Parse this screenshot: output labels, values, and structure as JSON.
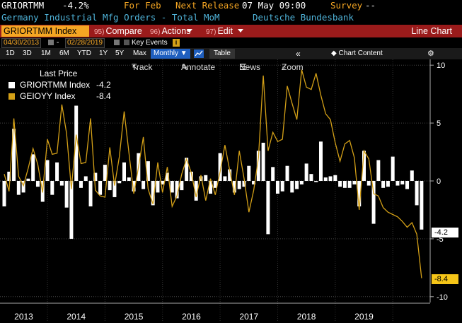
{
  "header": {
    "ticker": "GRIORTMM",
    "value": "-4.2%",
    "for_label": "For Feb",
    "next_release_label": "Next Release",
    "next_release_date": "07 May 09:00",
    "survey_label": "Survey",
    "survey_value": "--",
    "description": "Germany Industrial Mfg Orders - Total MoM",
    "source": "Deutsche Bundesbank"
  },
  "menubar": {
    "ticker_field": "GRIORTMM Index",
    "compare_num": "95)",
    "compare_label": "Compare",
    "actions_num": "96)",
    "actions_label": "Actions",
    "edit_num": "97)",
    "edit_label": "Edit",
    "title": "Line Chart"
  },
  "range": {
    "start": "04/30/2013",
    "sep": "-",
    "end": "02/28/2019",
    "key_events": "Key Events"
  },
  "periods": [
    "1D",
    "3D",
    "1M",
    "6M",
    "YTD",
    "1Y",
    "5Y",
    "Max"
  ],
  "frequency": "Monthly",
  "table_label": "Table",
  "chart_content_label": "Chart Content",
  "tools": {
    "track": "Track",
    "annotate": "Annotate",
    "news": "News",
    "zoom": "Zoom"
  },
  "legend": {
    "title": "Last Price",
    "items": [
      {
        "name": "GRIORTMM Index",
        "value": "-4.2",
        "color": "#ffffff"
      },
      {
        "name": "GEIOYY Index",
        "value": "-8.4",
        "color": "#d4a017"
      }
    ]
  },
  "last_labels": [
    "-4.2",
    "-8.4"
  ],
  "chart_data": {
    "type": "bar+line",
    "x_axis_labels": [
      "2013",
      "2014",
      "2015",
      "2016",
      "2017",
      "2018",
      "2019"
    ],
    "y_ticks": [
      "10",
      "5",
      "0",
      "-5",
      "-10"
    ],
    "ylim": [
      -10.5,
      10.5
    ],
    "start_month": "2013-04",
    "series": [
      {
        "name": "GRIORTMM Index",
        "type": "bar",
        "color": "#ffffff",
        "values": [
          -2.2,
          0.8,
          4.5,
          -1.2,
          -1.0,
          0.2,
          2.3,
          -0.5,
          -1.8,
          1.8,
          -1.2,
          1.6,
          -0.4,
          -2.3,
          -5.0,
          6.5,
          -0.6,
          0.4,
          -2.2,
          0.7,
          -1.2,
          1.4,
          -0.8,
          -1.4,
          -0.2,
          1.6,
          0.3,
          -0.9,
          2.4,
          -0.7,
          1.7,
          -2.1,
          -1.0,
          -0.3,
          0.7,
          -1.0,
          -1.5,
          -0.8,
          2.0,
          0.8,
          -1.7,
          0.4,
          0.5,
          -1.1,
          -0.6,
          2.4,
          0.4,
          1.0,
          -1.0,
          -0.7,
          -0.5,
          1.3,
          -0.3,
          2.6,
          3.3,
          -4.6,
          1.2,
          -1.1,
          -0.9,
          1.3,
          -1.0,
          -0.7,
          -0.3,
          1.5,
          0.6,
          -0.1,
          3.4,
          0.3,
          0.4,
          0.5,
          -0.5,
          -0.6,
          -0.6,
          -0.3,
          -2.2,
          2.6,
          -0.4,
          -3.7,
          1.8,
          -0.6,
          -0.5,
          2.1,
          -0.4,
          -0.3,
          -0.7,
          0.9,
          -2.1,
          -4.2
        ]
      },
      {
        "name": "GEIOYY Index",
        "type": "line",
        "color": "#d4a017",
        "values": [
          0.6,
          -0.9,
          5.4,
          0.4,
          -0.4,
          1.1,
          2.8,
          1.4,
          -1.0,
          3.6,
          2.3,
          2.4,
          6.6,
          4.1,
          -0.7,
          4.0,
          1.5,
          1.6,
          5.4,
          -0.8,
          -1.3,
          -1.4,
          2.9,
          -0.4,
          2.1,
          6.0,
          2.4,
          -1.1,
          1.2,
          3.8,
          -0.7,
          -2.0,
          1.6,
          -1.0,
          1.2,
          -2.2,
          -1.3,
          0.6,
          1.9,
          0.7,
          -1.4,
          0.5,
          -1.7,
          0.2,
          -1.2,
          0.8,
          3.1,
          0.9,
          -1.2,
          2.6,
          0.2,
          -2.7,
          -0.8,
          2.0,
          9.1,
          2.6,
          4.2,
          3.4,
          3.6,
          8.2,
          6.7,
          5.3,
          9.6,
          8.1,
          7.9,
          9.3,
          7.4,
          5.8,
          5.3,
          3.3,
          1.7,
          3.2,
          3.5,
          2.0,
          -2.5,
          2.6,
          1.9,
          -1.1,
          -1.3,
          -2.3,
          -2.7,
          -2.9,
          -3.1,
          -3.5,
          -4.0,
          -3.6,
          -4.6,
          -8.4
        ]
      }
    ]
  }
}
